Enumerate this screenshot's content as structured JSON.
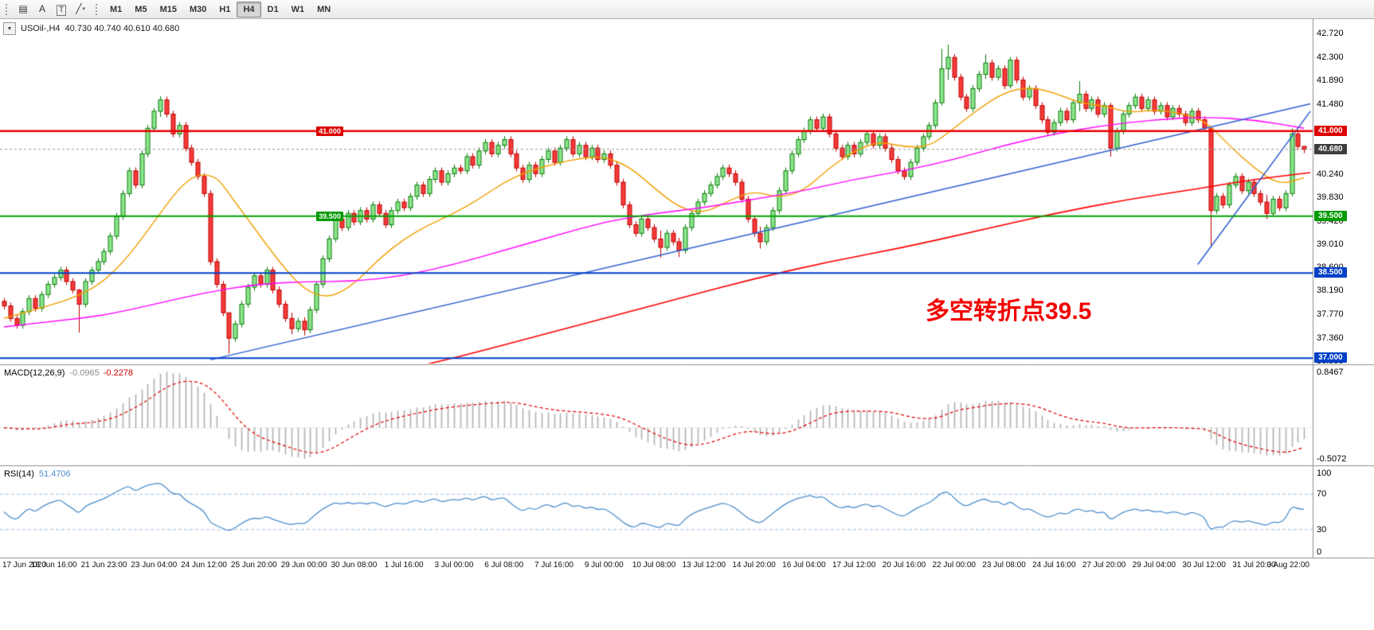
{
  "toolbar": {
    "tools": [
      {
        "glyph": "▤",
        "name": "chart-type-icon",
        "caret": false,
        "boxed": false
      },
      {
        "glyph": "A",
        "name": "text-tool-icon",
        "caret": false,
        "boxed": false
      },
      {
        "glyph": "T",
        "name": "text-label-tool-icon",
        "caret": false,
        "boxed": true
      },
      {
        "glyph": "╱",
        "name": "trendline-tool-icon",
        "caret": true,
        "boxed": false
      }
    ],
    "timeframes": [
      "M1",
      "M5",
      "M15",
      "M30",
      "H1",
      "H4",
      "D1",
      "W1",
      "MN"
    ],
    "active_timeframe": "H4"
  },
  "header": {
    "dropdown_glyph": "▼",
    "symbol": "USOil-,H4",
    "ohlc_text": "40.730 40.740 40.610 40.680"
  },
  "indicators": {
    "macd": {
      "label": "MACD(12,26,9)",
      "main_value": "-0.0965",
      "signal_value": "-0.2278",
      "scale_top": "0.8467",
      "scale_bottom": "-0.5072",
      "params": {
        "fast": 12,
        "slow": 26,
        "signal": 9
      },
      "histogram_color": "#b0b0b0",
      "signal_color": "#e00000"
    },
    "rsi": {
      "label": "RSI(14)",
      "value": "51.4706",
      "period": 14,
      "levels": [
        70,
        30
      ],
      "scale": [
        100,
        70,
        30,
        0
      ],
      "line_color": "#4d8fcc",
      "level_color": "#9fbcdc"
    }
  },
  "annotation": {
    "text": "多空转折点39.5",
    "color": "#f20000"
  },
  "chart_data": {
    "type": "candlestick",
    "symbol": "USOil-",
    "timeframe": "H4",
    "title": "USOil-,H4 40.730 40.740 40.610 40.680",
    "price_range": [
      36.905,
      42.96
    ],
    "first_open": 38.0,
    "closes": [
      37.92,
      37.7,
      37.58,
      37.82,
      38.05,
      37.88,
      38.12,
      38.3,
      38.42,
      38.55,
      38.35,
      38.2,
      37.95,
      38.35,
      38.55,
      38.7,
      38.88,
      39.15,
      39.5,
      39.9,
      40.3,
      40.05,
      40.6,
      41.05,
      41.35,
      41.55,
      41.3,
      40.95,
      41.1,
      40.7,
      40.45,
      40.2,
      39.9,
      38.7,
      38.3,
      37.8,
      37.35,
      37.6,
      37.95,
      38.25,
      38.45,
      38.3,
      38.55,
      38.2,
      37.95,
      37.7,
      37.52,
      37.65,
      37.5,
      37.85,
      38.3,
      38.75,
      39.1,
      39.45,
      39.3,
      39.55,
      39.4,
      39.6,
      39.45,
      39.7,
      39.55,
      39.35,
      39.6,
      39.75,
      39.65,
      39.85,
      40.05,
      39.9,
      40.15,
      40.3,
      40.1,
      40.25,
      40.35,
      40.3,
      40.55,
      40.4,
      40.65,
      40.8,
      40.6,
      40.75,
      40.85,
      40.6,
      40.35,
      40.15,
      40.4,
      40.25,
      40.5,
      40.65,
      40.45,
      40.7,
      40.85,
      40.6,
      40.75,
      40.55,
      40.7,
      40.5,
      40.6,
      40.4,
      40.1,
      39.7,
      39.35,
      39.2,
      39.45,
      39.3,
      39.1,
      38.95,
      39.2,
      39.05,
      38.9,
      39.3,
      39.55,
      39.75,
      39.9,
      40.05,
      40.2,
      40.35,
      40.25,
      40.1,
      39.8,
      39.45,
      39.2,
      39.05,
      39.3,
      39.6,
      39.95,
      40.3,
      40.6,
      40.85,
      41.0,
      41.2,
      41.05,
      41.25,
      40.95,
      40.7,
      40.55,
      40.75,
      40.6,
      40.8,
      40.95,
      40.75,
      40.9,
      40.7,
      40.5,
      40.3,
      40.2,
      40.45,
      40.7,
      40.9,
      41.1,
      41.5,
      42.1,
      42.3,
      41.95,
      41.6,
      41.4,
      41.75,
      42.0,
      42.2,
      41.95,
      42.1,
      41.8,
      42.25,
      41.9,
      41.6,
      41.75,
      41.45,
      41.2,
      40.98,
      41.15,
      41.35,
      41.2,
      41.5,
      41.65,
      41.4,
      41.55,
      41.3,
      41.45,
      40.7,
      41.0,
      41.3,
      41.45,
      41.6,
      41.4,
      41.55,
      41.35,
      41.45,
      41.25,
      41.4,
      41.3,
      41.15,
      41.35,
      41.2,
      41.05,
      39.6,
      39.85,
      39.7,
      40.05,
      40.2,
      39.95,
      40.1,
      39.9,
      39.75,
      39.55,
      39.8,
      39.65,
      39.9,
      40.95,
      40.73,
      40.68
    ],
    "wick_overrides": {
      "12": [
        38.22,
        37.45
      ],
      "25": [
        41.62,
        41.25
      ],
      "36": [
        37.7,
        37.08
      ],
      "46": [
        37.8,
        37.42
      ],
      "48": [
        37.72,
        37.4
      ],
      "105": [
        39.25,
        38.77
      ],
      "108": [
        39.12,
        38.78
      ],
      "121": [
        39.32,
        38.93
      ],
      "150": [
        42.45,
        41.45
      ],
      "151": [
        42.52,
        41.9
      ],
      "157": [
        42.35,
        41.92
      ],
      "161": [
        42.3,
        41.75
      ],
      "172": [
        41.88,
        41.35
      ],
      "177": [
        41.5,
        40.55
      ],
      "193": [
        41.08,
        38.95
      ],
      "202": [
        39.88,
        39.45
      ],
      "206": [
        41.05,
        39.85
      ],
      "208": [
        40.74,
        40.61
      ]
    },
    "candles_per_label": 8,
    "time_labels": [
      "17 Jun 2020",
      "18 Jun 16:00",
      "21 Jun 23:00",
      "23 Jun 04:00",
      "24 Jun 12:00",
      "25 Jun 20:00",
      "29 Jun 00:00",
      "30 Jun 08:00",
      "1 Jul 16:00",
      "3 Jul 00:00",
      "6 Jul 08:00",
      "7 Jul 16:00",
      "9 Jul 00:00",
      "10 Jul 08:00",
      "13 Jul 12:00",
      "14 Jul 20:00",
      "16 Jul 04:00",
      "17 Jul 12:00",
      "20 Jul 16:00",
      "22 Jul 00:00",
      "23 Jul 08:00",
      "24 Jul 16:00",
      "27 Jul 20:00",
      "29 Jul 04:00",
      "30 Jul 12:00",
      "31 Jul 20:00",
      "3 Aug 22:00"
    ],
    "price_ticks": [
      42.72,
      42.3,
      41.89,
      41.48,
      40.24,
      39.83,
      39.42,
      39.01,
      38.6,
      38.19,
      37.77,
      37.36,
      36.95
    ],
    "price_badges": [
      {
        "v": 41.0,
        "t": "41.000",
        "bg": "#dd0000"
      },
      {
        "v": 40.68,
        "t": "40.680",
        "bg": "#3c3c3c"
      },
      {
        "v": 39.5,
        "t": "39.500",
        "bg": "#009a00"
      },
      {
        "v": 38.5,
        "t": "38.500",
        "bg": "#0040c8"
      },
      {
        "v": 37.0,
        "t": "37.000",
        "bg": "#0040c8"
      }
    ],
    "hlines": [
      {
        "v": 41.0,
        "c": "#e80000",
        "w": 2.5
      },
      {
        "v": 39.5,
        "c": "#00a000",
        "w": 2
      },
      {
        "v": 38.5,
        "c": "#0040c8",
        "w": 2
      },
      {
        "v": 37.0,
        "c": "#0040c8",
        "w": 2
      }
    ],
    "current_price": {
      "v": 40.68,
      "t": "40.680"
    },
    "inline_labels": [
      {
        "t": "41.000",
        "v": 41.0,
        "i": 50,
        "bg": "#dd0000"
      },
      {
        "t": "39.500",
        "v": 39.5,
        "i": 50,
        "bg": "#009a00"
      }
    ],
    "moving_averages": [
      {
        "name": "ma-fast-orange",
        "color": "#f0a000",
        "w": 1.4,
        "pts": [
          [
            0,
            37.7
          ],
          [
            8,
            37.95
          ],
          [
            12,
            38.1
          ],
          [
            16,
            38.35
          ],
          [
            20,
            38.8
          ],
          [
            24,
            39.4
          ],
          [
            28,
            40.0
          ],
          [
            31,
            40.25
          ],
          [
            34,
            40.2
          ],
          [
            36,
            39.9
          ],
          [
            40,
            39.3
          ],
          [
            44,
            38.7
          ],
          [
            48,
            38.2
          ],
          [
            52,
            38.05
          ],
          [
            56,
            38.3
          ],
          [
            60,
            38.75
          ],
          [
            64,
            39.1
          ],
          [
            68,
            39.35
          ],
          [
            72,
            39.55
          ],
          [
            76,
            39.8
          ],
          [
            80,
            40.1
          ],
          [
            84,
            40.3
          ],
          [
            88,
            40.42
          ],
          [
            92,
            40.52
          ],
          [
            96,
            40.55
          ],
          [
            100,
            40.38
          ],
          [
            104,
            40.0
          ],
          [
            108,
            39.65
          ],
          [
            112,
            39.55
          ],
          [
            116,
            39.78
          ],
          [
            120,
            39.95
          ],
          [
            124,
            39.82
          ],
          [
            128,
            39.95
          ],
          [
            132,
            40.35
          ],
          [
            136,
            40.65
          ],
          [
            140,
            40.82
          ],
          [
            144,
            40.72
          ],
          [
            148,
            40.72
          ],
          [
            152,
            41.05
          ],
          [
            156,
            41.4
          ],
          [
            160,
            41.68
          ],
          [
            164,
            41.78
          ],
          [
            168,
            41.68
          ],
          [
            172,
            41.5
          ],
          [
            176,
            41.45
          ],
          [
            180,
            41.32
          ],
          [
            184,
            41.38
          ],
          [
            188,
            41.32
          ],
          [
            192,
            41.2
          ],
          [
            196,
            40.75
          ],
          [
            200,
            40.35
          ],
          [
            204,
            40.05
          ],
          [
            208,
            40.18
          ]
        ]
      },
      {
        "name": "ma-mid-magenta",
        "color": "#ff00ff",
        "w": 1.4,
        "pts": [
          [
            0,
            37.55
          ],
          [
            8,
            37.65
          ],
          [
            16,
            37.75
          ],
          [
            24,
            37.95
          ],
          [
            32,
            38.15
          ],
          [
            40,
            38.3
          ],
          [
            48,
            38.35
          ],
          [
            56,
            38.35
          ],
          [
            64,
            38.45
          ],
          [
            72,
            38.65
          ],
          [
            80,
            38.9
          ],
          [
            88,
            39.15
          ],
          [
            96,
            39.4
          ],
          [
            104,
            39.55
          ],
          [
            112,
            39.65
          ],
          [
            120,
            39.8
          ],
          [
            128,
            39.95
          ],
          [
            136,
            40.15
          ],
          [
            144,
            40.3
          ],
          [
            152,
            40.5
          ],
          [
            160,
            40.75
          ],
          [
            168,
            40.95
          ],
          [
            176,
            41.1
          ],
          [
            184,
            41.2
          ],
          [
            192,
            41.25
          ],
          [
            200,
            41.2
          ],
          [
            208,
            41.05
          ]
        ]
      },
      {
        "name": "ma-slow-red",
        "color": "#ff0000",
        "w": 1.6,
        "pts": [
          [
            58,
            36.65
          ],
          [
            72,
            37.0
          ],
          [
            84,
            37.35
          ],
          [
            96,
            37.7
          ],
          [
            108,
            38.05
          ],
          [
            120,
            38.4
          ],
          [
            132,
            38.7
          ],
          [
            144,
            38.95
          ],
          [
            156,
            39.25
          ],
          [
            168,
            39.55
          ],
          [
            180,
            39.8
          ],
          [
            192,
            40.0
          ],
          [
            200,
            40.15
          ],
          [
            209,
            40.27
          ]
        ]
      }
    ],
    "trendlines": [
      {
        "c": "#3060d0",
        "w": 1.5,
        "pts": [
          [
            33,
            36.97
          ],
          [
            209,
            41.48
          ]
        ]
      },
      {
        "c": "#3060d0",
        "w": 1.5,
        "pts": [
          [
            191,
            38.65
          ],
          [
            209,
            41.35
          ]
        ]
      }
    ]
  }
}
